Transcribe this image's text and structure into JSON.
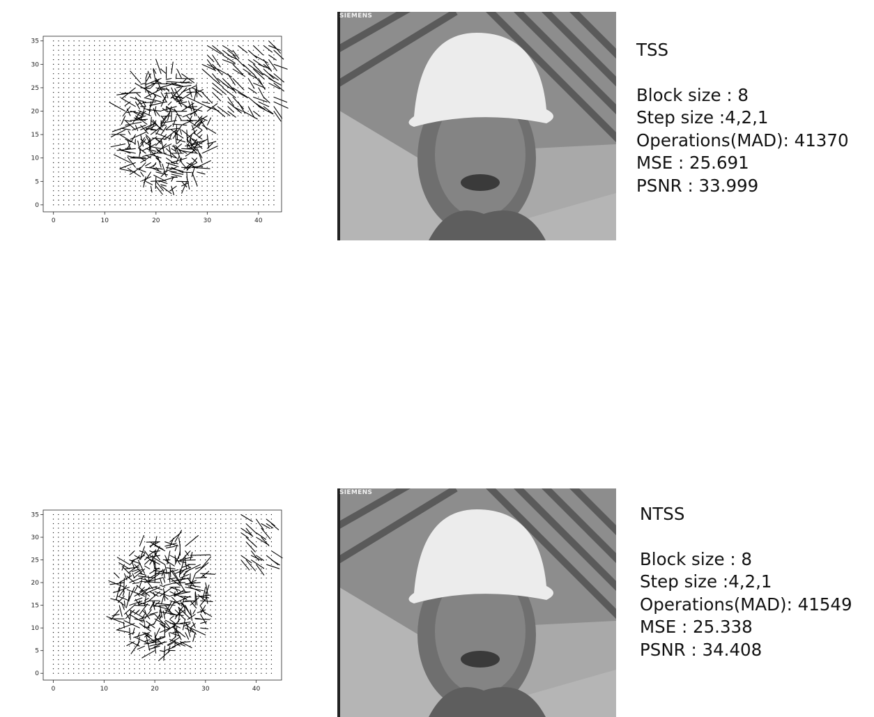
{
  "panels": [
    {
      "algorithm": "TSS",
      "frame_logo": "SIEMENS",
      "stats": {
        "block_size": "Block size : 8",
        "step_size": "Step size :4,2,1",
        "operations": "Operations(MAD): 41370",
        "mse": "MSE : 25.691",
        "psnr": "PSNR : 33.999"
      }
    },
    {
      "algorithm": "NTSS",
      "frame_logo": "SIEMENS",
      "stats": {
        "block_size": "Block size : 8",
        "step_size": "Step size :4,2,1",
        "operations": "Operations(MAD): 41549",
        "mse": "MSE : 25.338",
        "psnr": "PSNR : 34.408"
      }
    }
  ],
  "chart_data": [
    {
      "type": "quiver",
      "grid": false,
      "xlim": [
        -2,
        44.5
      ],
      "ylim": [
        -1.5,
        36
      ],
      "xticks": [
        0,
        10,
        20,
        30,
        40
      ],
      "yticks": [
        0,
        5,
        10,
        15,
        20,
        25,
        30,
        35
      ],
      "field": {
        "cols": 44,
        "rows": 36
      },
      "motion_region": {
        "center": [
          22,
          16
        ],
        "radius_x": 8.5,
        "radius_y": 13,
        "max_magnitude": 4
      },
      "edge_region": {
        "x_from": 29,
        "x_to": 44,
        "y_from": 20,
        "y_to": 36,
        "direction": [
          1.8,
          -1.6
        ]
      }
    },
    {
      "type": "quiver",
      "grid": false,
      "xlim": [
        -2,
        45
      ],
      "ylim": [
        -1.5,
        36
      ],
      "xticks": [
        0,
        10,
        20,
        30,
        40
      ],
      "yticks": [
        0,
        5,
        10,
        15,
        20,
        25,
        30,
        35
      ],
      "field": {
        "cols": 44,
        "rows": 36
      },
      "motion_region": {
        "center": [
          21.5,
          17
        ],
        "radius_x": 9,
        "radius_y": 13,
        "max_magnitude": 4
      },
      "edge_region": {
        "x_from": 37,
        "x_to": 44,
        "y_from": 24,
        "y_to": 36,
        "direction": [
          1.6,
          -1.5
        ]
      }
    }
  ]
}
